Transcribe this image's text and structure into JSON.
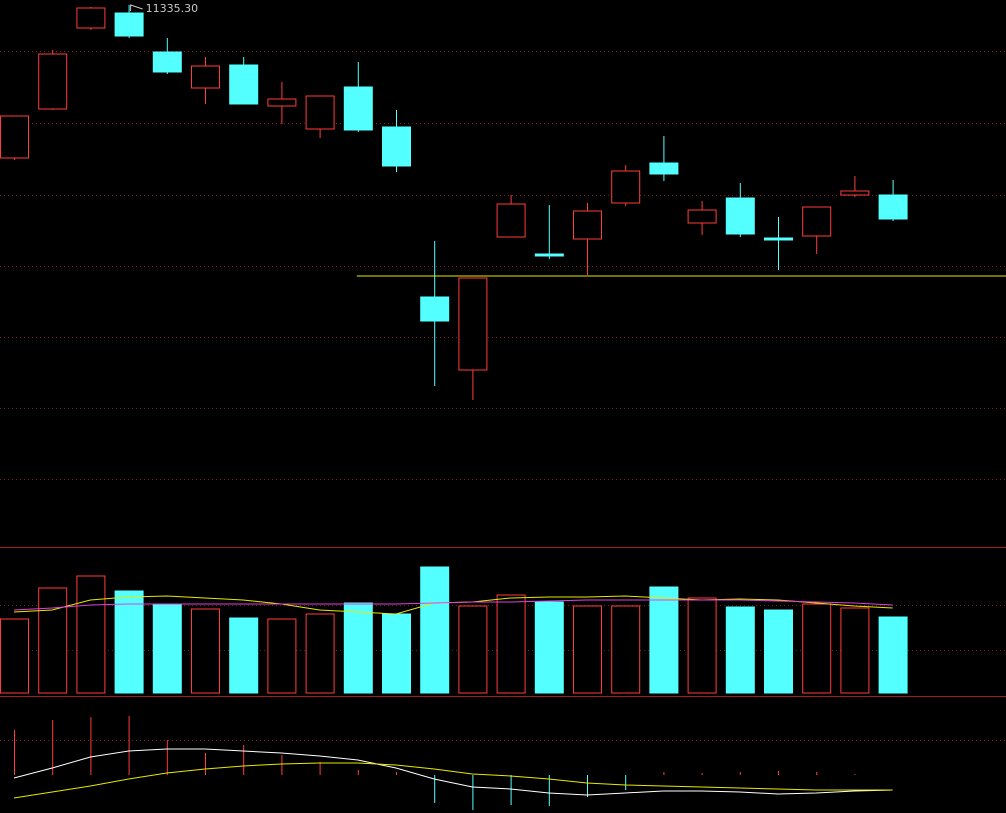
{
  "chart_data": [
    {
      "type": "candlestick",
      "ylim": [
        10255.3,
        11345.3
      ],
      "up_color": "#ff3c3c",
      "down_color": "#54ffff",
      "open": [
        11029.3,
        11127.3,
        11289.3,
        11319.3,
        11241.3,
        11169.3,
        11215.3,
        11133.3,
        11087.3,
        11171.3,
        11091.3,
        10751.3,
        10605.3,
        10871.3,
        10837.3,
        10867.3,
        10939.3,
        11019.3,
        10899.3,
        10949.3,
        10869.3,
        10873.3,
        10955.3,
        10955.3
      ],
      "high": [
        11113.3,
        11245.3,
        11331.3,
        11335.3,
        11269.3,
        11231.3,
        11231.3,
        11181.3,
        11153.3,
        11221.3,
        11125.3,
        10863.3,
        10789.3,
        10955.3,
        10935.3,
        10939.3,
        11015.3,
        11073.3,
        10943.3,
        10979.3,
        10911.3,
        10931.3,
        10993.3,
        10985.3
      ],
      "low": [
        11025.3,
        11125.3,
        11285.3,
        11269.3,
        11197.3,
        11137.3,
        11137.3,
        11097.3,
        11069.3,
        11081.3,
        11001.3,
        10573.3,
        10545.3,
        10871.3,
        10827.3,
        10795.3,
        10933.3,
        10983.3,
        10875.3,
        10871.3,
        10805.3,
        10837.3,
        10951.3,
        10903.3
      ],
      "close": [
        11113.3,
        11237.3,
        11329.3,
        11273.3,
        11201.3,
        11213.3,
        11137.3,
        11147.3,
        11153.3,
        11085.3,
        11013.3,
        10703.3,
        10789.3,
        10937.3,
        10833.3,
        10923.3,
        11003.3,
        10997.3,
        10925.3,
        10877.3,
        10865.3,
        10931.3,
        10963.3,
        10907.3
      ],
      "max_label": {
        "value": 11335.3,
        "label": "11335.30"
      },
      "ref_line": {
        "value": 10793.3,
        "color": "#e8e800"
      },
      "grid": true
    },
    {
      "type": "volume",
      "ylim": [
        0,
        145000
      ],
      "values": [
        74000,
        105000,
        117000,
        102000,
        88000,
        84000,
        75000,
        74000,
        79000,
        90000,
        79000,
        126000,
        87000,
        98000,
        91000,
        87000,
        87000,
        106000,
        95000,
        86000,
        83000,
        89000,
        85000,
        76000
      ],
      "ma_lines": [
        {
          "color": "#e8e800",
          "values": [
            81000,
            83000,
            93000,
            96000,
            97000,
            95000,
            93000,
            89000,
            83000,
            81000,
            79000,
            90000,
            91000,
            95000,
            96000,
            96000,
            97000,
            95000,
            93000,
            94000,
            93000,
            90000,
            87000,
            85000
          ]
        },
        {
          "color": "#e040e0",
          "values": [
            83000,
            85000,
            88000,
            89000,
            89000,
            89000,
            89000,
            89000,
            89000,
            89000,
            89000,
            90000,
            91000,
            91000,
            92000,
            93000,
            93000,
            93000,
            93000,
            93000,
            92000,
            91000,
            90000,
            88000
          ]
        }
      ],
      "grid": true
    },
    {
      "type": "macd",
      "ylim": [
        -19,
        37.5
      ],
      "histogram": [
        22.5,
        27.5,
        29,
        29.5,
        17.5,
        11,
        15,
        10,
        6.5,
        2.5,
        1.5,
        -14,
        -17.5,
        -15,
        -15.5,
        -11,
        -7.5,
        1.5,
        1,
        1.5,
        2,
        1.5,
        0.5,
        0
      ],
      "lines": [
        {
          "color": "#ffffff",
          "values": [
            -1.5,
            3.5,
            9,
            12,
            13,
            13,
            12,
            11,
            9.5,
            7.5,
            3.5,
            -2,
            -6,
            -7,
            -9,
            -10,
            -9,
            -8,
            -8,
            -8.5,
            -9.5,
            -9,
            -8,
            -7.5
          ]
        },
        {
          "color": "#e8e800",
          "values": [
            -11.5,
            -8.5,
            -5.5,
            -2,
            1,
            3,
            4.5,
            5.5,
            6,
            6,
            5,
            3,
            0.5,
            -0.5,
            -2,
            -4,
            -5,
            -5.5,
            -6,
            -6.5,
            -7,
            -7.5,
            -7.5,
            -7.5
          ]
        }
      ],
      "grid": true
    }
  ]
}
